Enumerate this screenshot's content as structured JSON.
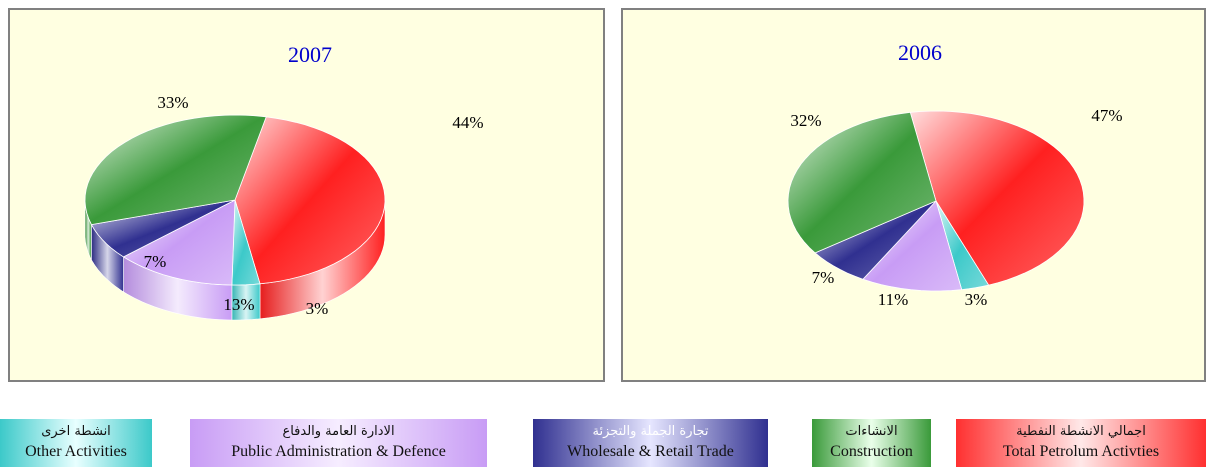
{
  "chart_data": [
    {
      "type": "pie",
      "title": "2007",
      "categories": [
        "Total Petrolum Activties",
        "Other Activities",
        "Public Administration & Defence",
        "Wholesale & Retail Trade",
        "Construction"
      ],
      "values": [
        44,
        3,
        13,
        7,
        33
      ],
      "labels": [
        "44%",
        "3%",
        "13%",
        "7%",
        "33%"
      ]
    },
    {
      "type": "pie",
      "title": "2006",
      "categories": [
        "Total Petrolum Activties",
        "Other Activities",
        "Public Administration & Defence",
        "Wholesale & Retail Trade",
        "Construction"
      ],
      "values": [
        47,
        3,
        11,
        7,
        32
      ],
      "labels": [
        "47%",
        "3%",
        "11%",
        "7%",
        "32%"
      ]
    }
  ],
  "legend": [
    {
      "id": "other",
      "ar": "انشطة اخرى",
      "en": "Other Activities",
      "color": "#3cc9c9"
    },
    {
      "id": "public",
      "ar": "الادارة العامة والدفاع",
      "en": "Public Administration & Defence",
      "color": "#c89cf5"
    },
    {
      "id": "wholesale",
      "ar": "تجارة الجملة والتجزئة",
      "en": "Wholesale & Retail Trade",
      "color": "#303090"
    },
    {
      "id": "construction",
      "ar": "الانشاءات",
      "en": "Construction",
      "color": "#3a9a3a"
    },
    {
      "id": "petrol",
      "ar": "اجمالي الانشطة النفطية",
      "en": "Total Petrolum Activties",
      "color": "#ff2020"
    }
  ]
}
